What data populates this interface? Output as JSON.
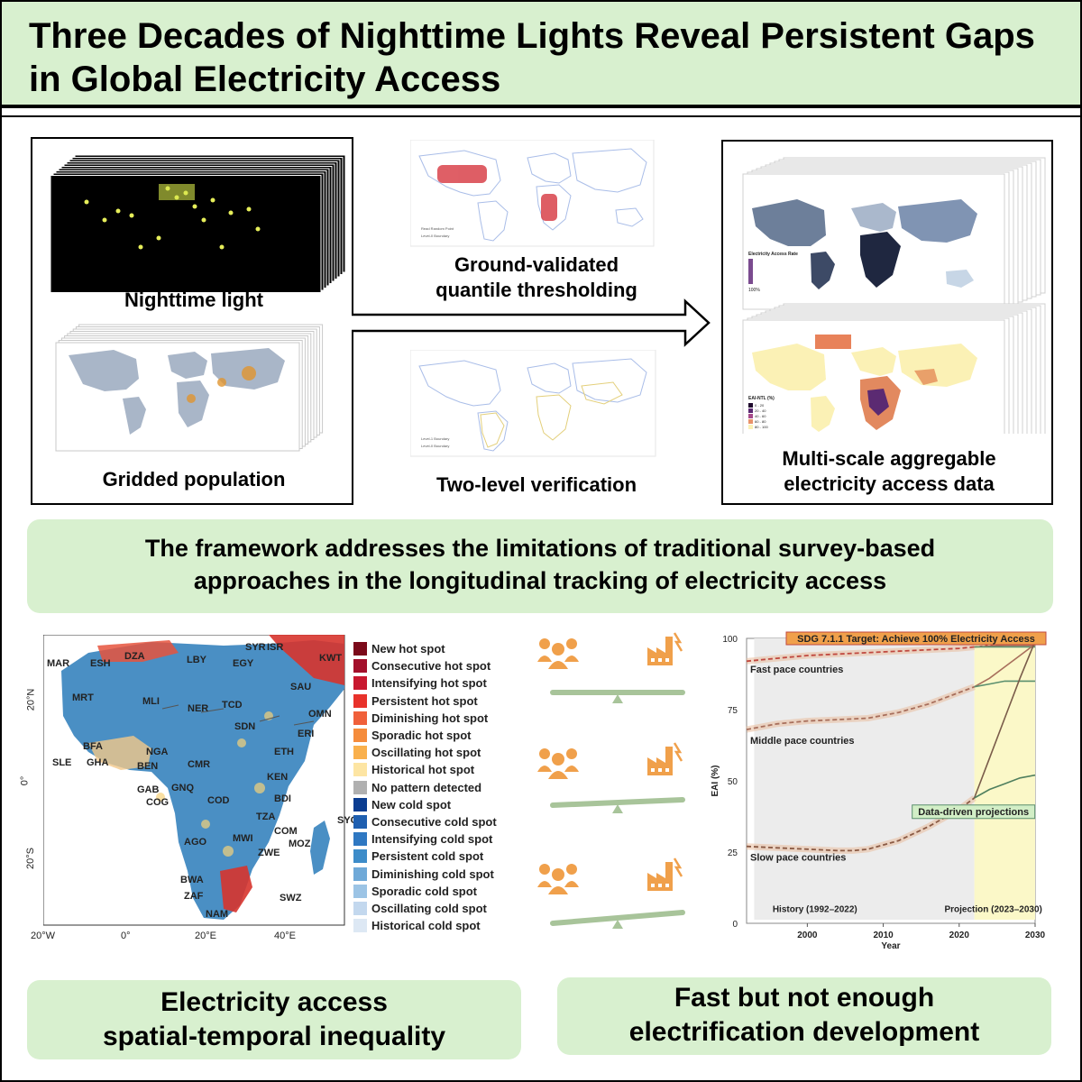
{
  "title": "Three Decades of Nighttime Lights Reveal Persistent Gaps in Global Electricity Access",
  "workflow": {
    "nighttime_light": "Nighttime light",
    "gridded_population": "Gridded population",
    "ground_validated_line1": "Ground-validated",
    "ground_validated_line2": "quantile thresholding",
    "two_level": "Two-level verification",
    "multi_scale_line1": "Multi-scale aggregable",
    "multi_scale_line2": "electricity access data",
    "map_legend_1": "Electricity Access Rate",
    "map_legend_1_pct": "100%",
    "map_legend_2_title": "EAI-NTL (%)",
    "map_legend_2_items": [
      "0 - 20",
      "20 - 40",
      "40 - 60",
      "60 - 80",
      "80 - 100"
    ],
    "ref_legend_a": "Read Random Point",
    "ref_legend_b": "Level-0 Boundary",
    "ref_legend_c": "Level-1 Boundary",
    "ref_legend_d": "Level-0 Boundary"
  },
  "framework_line1": "The framework addresses the limitations of traditional survey-based",
  "framework_line2": "approaches in the longitudinal tracking of electricity access",
  "africa_map": {
    "countries": [
      "MAR",
      "ESH",
      "DZA",
      "LBY",
      "EGY",
      "SYR",
      "ISR",
      "KWT",
      "SAU",
      "OMN",
      "MRT",
      "MLI",
      "NER",
      "TCD",
      "SDN",
      "ERI",
      "BFA",
      "GHA",
      "SLE",
      "NGA",
      "BEN",
      "CMR",
      "ETH",
      "KEN",
      "GAB",
      "GNQ",
      "COG",
      "COD",
      "BDI",
      "TZA",
      "SYC",
      "COM",
      "MOZ",
      "AGO",
      "MWI",
      "ZWE",
      "BWA",
      "ZAF",
      "NAM",
      "SWZ"
    ],
    "lat_ticks": [
      "20°N",
      "0°",
      "20°S"
    ],
    "lon_ticks": [
      "20°W",
      "0°",
      "20°E",
      "40°E"
    ]
  },
  "legend": [
    {
      "label": "New hot spot",
      "color": "#7b0a1a"
    },
    {
      "label": "Consecutive hot spot",
      "color": "#a3102b"
    },
    {
      "label": "Intensifying hot spot",
      "color": "#c8182f"
    },
    {
      "label": "Persistent hot spot",
      "color": "#e8322b"
    },
    {
      "label": "Diminishing hot spot",
      "color": "#f0603a"
    },
    {
      "label": "Sporadic hot spot",
      "color": "#f58c3c"
    },
    {
      "label": "Oscillating hot spot",
      "color": "#f9b04d"
    },
    {
      "label": "Historical hot spot",
      "color": "#fde5a3"
    },
    {
      "label": "No pattern detected",
      "color": "#b0b0b0"
    },
    {
      "label": "New cold spot",
      "color": "#0b3d91"
    },
    {
      "label": "Consecutive cold spot",
      "color": "#1f5fb0"
    },
    {
      "label": "Intensifying cold spot",
      "color": "#2f78c2"
    },
    {
      "label": "Persistent cold spot",
      "color": "#3d8cc9"
    },
    {
      "label": "Diminishing cold spot",
      "color": "#6fa9d8"
    },
    {
      "label": "Sporadic cold spot",
      "color": "#9cc4e5"
    },
    {
      "label": "Oscillating cold spot",
      "color": "#c3d8ee"
    },
    {
      "label": "Historical cold spot",
      "color": "#dde8f4"
    }
  ],
  "chart_data": {
    "type": "line",
    "ylabel": "EAI (%)",
    "xlabel": "Year",
    "xlim": [
      1992,
      2030
    ],
    "ylim": [
      0,
      100
    ],
    "x_ticks": [
      2000,
      2010,
      2020,
      2030
    ],
    "y_ticks": [
      0,
      25,
      50,
      75,
      100
    ],
    "target_label": "SDG 7.1.1 Target: Achieve 100% Electricity Access",
    "projection_label": "Data-driven projections",
    "history_label": "History (1992–2022)",
    "projection_period_label": "Projection (2023–2030)",
    "series": [
      {
        "name": "Fast pace countries",
        "color": "#c0483f",
        "years": [
          1992,
          1996,
          2000,
          2004,
          2008,
          2012,
          2016,
          2020,
          2022
        ],
        "values": [
          92,
          93,
          94,
          94.5,
          95,
          95.5,
          96,
          96.5,
          97
        ],
        "projections": [
          {
            "color": "#c0483f",
            "years": [
              2022,
              2026,
              2030
            ],
            "values": [
              97,
              98,
              99
            ]
          },
          {
            "color": "#a86f5c",
            "years": [
              2022,
              2026,
              2030
            ],
            "values": [
              97,
              97.5,
              97.5
            ]
          },
          {
            "color": "#5a8f6e",
            "years": [
              2022,
              2026,
              2030
            ],
            "values": [
              97,
              97,
              97
            ]
          }
        ]
      },
      {
        "name": "Middle pace countries",
        "color": "#a86f5c",
        "years": [
          1992,
          1996,
          2000,
          2004,
          2008,
          2012,
          2016,
          2020,
          2022
        ],
        "values": [
          68,
          70,
          71,
          71.5,
          72,
          74,
          77,
          81,
          83
        ],
        "projections": [
          {
            "color": "#a86f5c",
            "years": [
              2022,
              2024,
              2026,
              2028,
              2030
            ],
            "values": [
              83,
              86,
              90,
              94,
              98
            ]
          },
          {
            "color": "#5a8f6e",
            "years": [
              2022,
              2024,
              2026,
              2028,
              2030
            ],
            "values": [
              83,
              84,
              85,
              85,
              85
            ]
          }
        ]
      },
      {
        "name": "Slow pace countries",
        "color": "#8a5a44",
        "years": [
          1992,
          1996,
          2000,
          2004,
          2006,
          2008,
          2012,
          2016,
          2020,
          2022
        ],
        "values": [
          27,
          26.5,
          26,
          25.5,
          25.5,
          26,
          29,
          34,
          40,
          44
        ],
        "projections": [
          {
            "color": "#7a5c4a",
            "years": [
              2022,
              2024,
              2026,
              2028,
              2030
            ],
            "values": [
              44,
              58,
              72,
              86,
              99
            ]
          },
          {
            "color": "#4f7f5e",
            "years": [
              2022,
              2024,
              2026,
              2028,
              2030
            ],
            "values": [
              44,
              47,
              49,
              51,
              52
            ]
          }
        ]
      }
    ]
  },
  "bottom_left_line1": "Electricity access",
  "bottom_left_line2": "spatial-temporal inequality",
  "bottom_right_line1": "Fast but not enough",
  "bottom_right_line2": "electrification development"
}
